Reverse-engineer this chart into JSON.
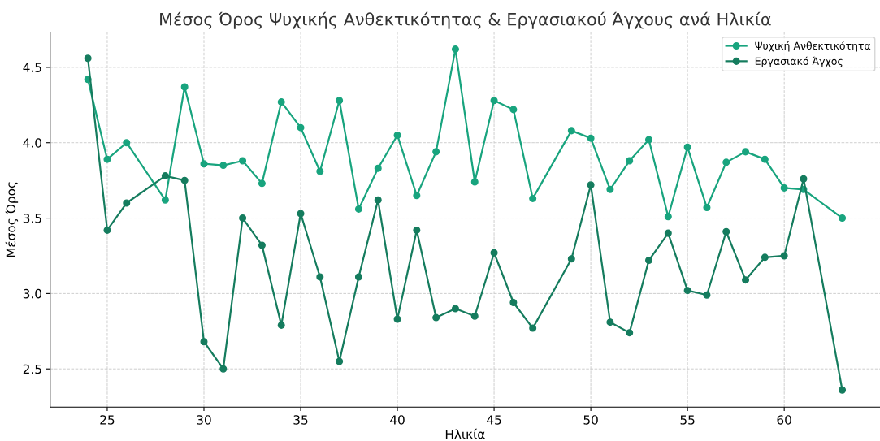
{
  "chart_data": {
    "type": "line",
    "title": "Μέσος Όρος Ψυχικής Ανθεκτικότητας & Εργασιακού Άγχους ανά Ηλικία",
    "xlabel": "Ηλικία",
    "ylabel": "Μέσος Όρος",
    "x": [
      24,
      25,
      26,
      28,
      29,
      30,
      31,
      32,
      33,
      34,
      35,
      36,
      37,
      38,
      39,
      40,
      41,
      42,
      43,
      44,
      45,
      46,
      47,
      49,
      50,
      51,
      52,
      53,
      54,
      55,
      56,
      57,
      58,
      59,
      60,
      61,
      63
    ],
    "series": [
      {
        "name": "Ψυχική Ανθεκτικότητα",
        "color": "#18a47e",
        "values": [
          4.42,
          3.89,
          4.0,
          3.62,
          4.37,
          3.86,
          3.85,
          3.88,
          3.73,
          4.27,
          4.1,
          3.81,
          4.28,
          3.56,
          3.83,
          4.05,
          3.65,
          3.94,
          4.62,
          3.74,
          4.28,
          4.22,
          3.63,
          4.08,
          4.03,
          3.69,
          3.88,
          4.02,
          3.51,
          3.97,
          3.57,
          3.87,
          3.94,
          3.89,
          3.7,
          3.69,
          3.5
        ]
      },
      {
        "name": "Εργασιακό Άγχος",
        "color": "#157c5e",
        "values": [
          4.56,
          3.42,
          3.6,
          3.78,
          3.75,
          2.68,
          2.5,
          3.5,
          3.32,
          2.79,
          3.53,
          3.11,
          2.55,
          3.11,
          3.62,
          2.83,
          3.42,
          2.84,
          2.9,
          2.85,
          3.27,
          2.94,
          2.77,
          3.23,
          3.72,
          2.81,
          2.74,
          3.22,
          3.4,
          3.02,
          2.99,
          3.41,
          3.09,
          3.24,
          3.25,
          3.76,
          2.36
        ]
      }
    ],
    "xlim": [
      22.05,
      64.95
    ],
    "xticks": [
      25,
      30,
      35,
      40,
      45,
      50,
      55,
      60
    ],
    "ylim": [
      2.247,
      4.733
    ],
    "yticks": [
      2.5,
      {
        "value": 3,
        "label": "3.0"
      },
      3.5,
      {
        "value": 4,
        "label": "4.0"
      },
      4.5
    ],
    "grid": true,
    "legend": "top right",
    "marker": "circle",
    "line_style": "solid"
  }
}
